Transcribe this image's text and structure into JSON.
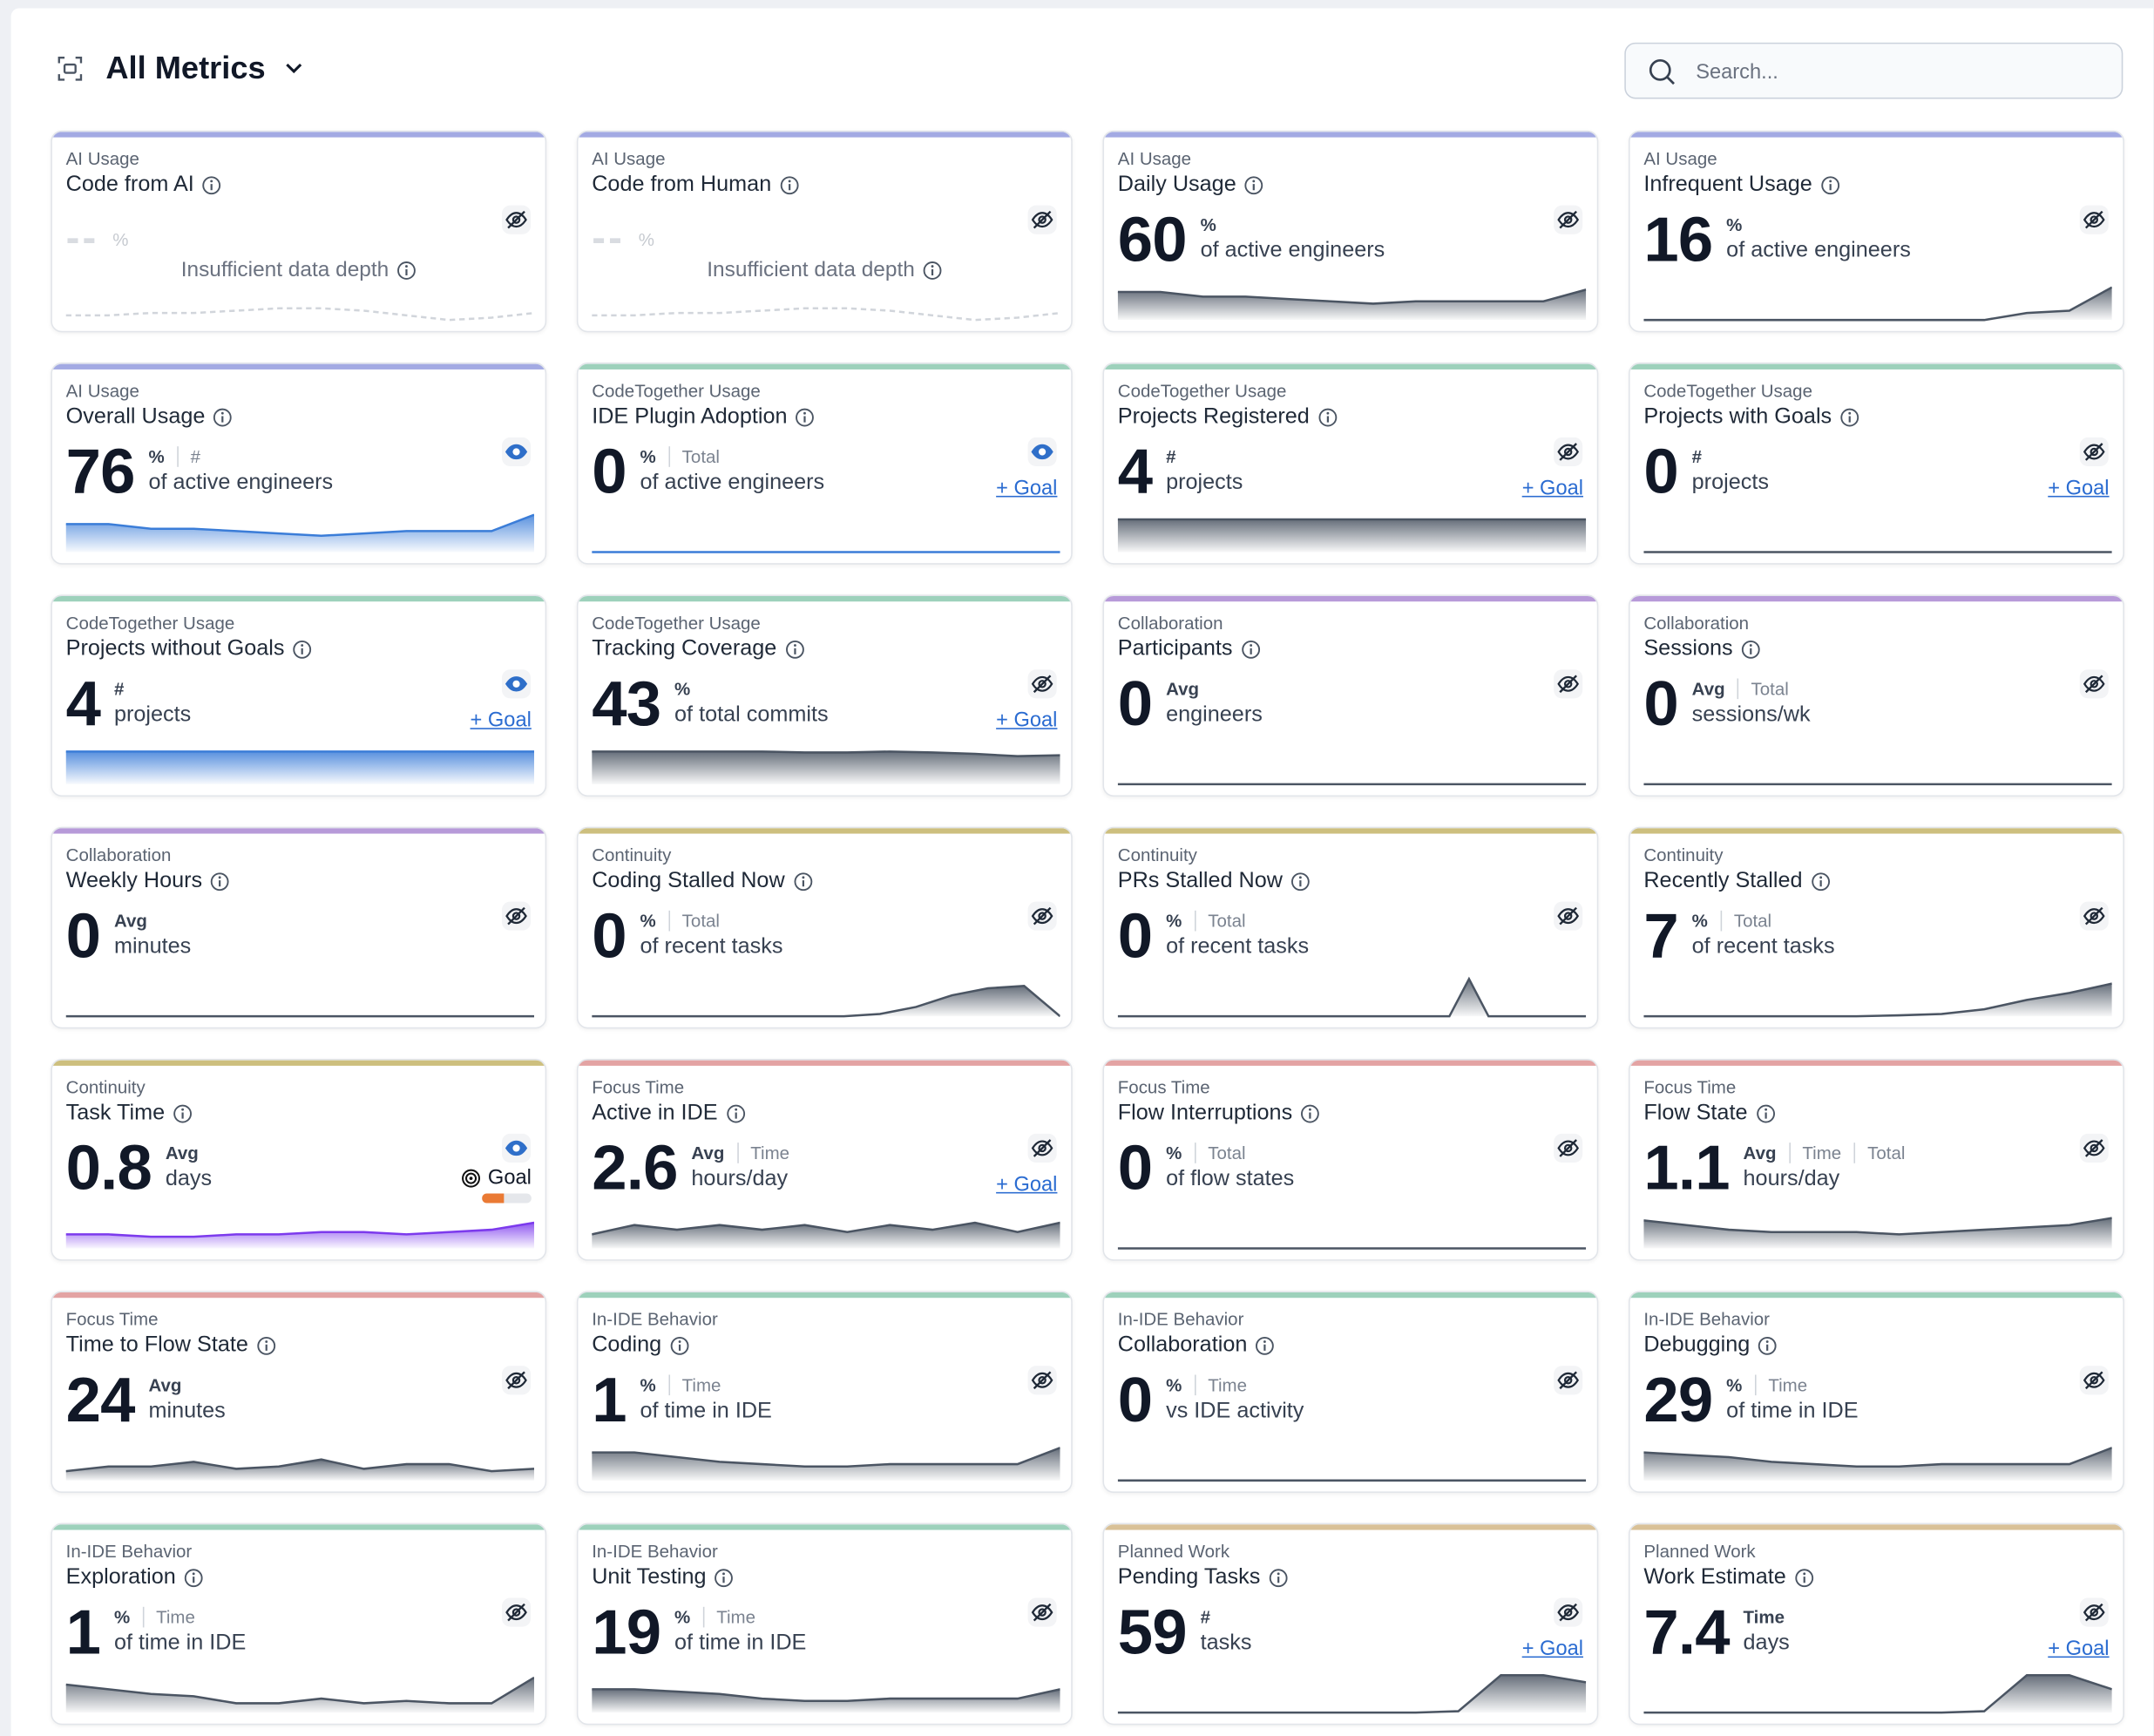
{
  "header": {
    "title": "All Metrics",
    "search_placeholder": "Search..."
  },
  "spark_ylim": [
    0,
    10
  ],
  "cards": [
    {
      "category": "AI Usage",
      "title": "Code from AI",
      "value": "--",
      "units": [
        "%"
      ],
      "note": "Insufficient data depth",
      "visible": false,
      "accent": "#a3aae3",
      "spark": [
        1,
        1,
        1.5,
        1.5,
        2,
        2.5,
        2.5,
        2,
        1,
        0,
        0.5,
        1.5
      ],
      "spark_style": "dashed",
      "spark_color": "#d1d5db"
    },
    {
      "category": "AI Usage",
      "title": "Code from Human",
      "value": "--",
      "units": [
        "%"
      ],
      "note": "Insufficient data depth",
      "visible": false,
      "accent": "#a3aae3",
      "spark": [
        1,
        1,
        1.5,
        1.5,
        2,
        2.5,
        2.5,
        2,
        1,
        0,
        0.5,
        1.5
      ],
      "spark_style": "dashed",
      "spark_color": "#d1d5db"
    },
    {
      "category": "AI Usage",
      "title": "Daily Usage",
      "value": 60,
      "units": [
        "%"
      ],
      "desc": "of active engineers",
      "visible": false,
      "accent": "#a3aae3",
      "spark": [
        6,
        6,
        5,
        5,
        4.5,
        4,
        3.5,
        4,
        4,
        4,
        4,
        6.5
      ],
      "spark_style": "area",
      "spark_color": "#4b5563"
    },
    {
      "category": "AI Usage",
      "title": "Infrequent Usage",
      "value": 16,
      "units": [
        "%"
      ],
      "desc": "of active engineers",
      "visible": false,
      "accent": "#a3aae3",
      "spark": [
        0,
        0,
        0,
        0,
        0,
        0,
        0,
        0,
        0,
        1.5,
        2,
        7
      ],
      "spark_style": "area",
      "spark_color": "#4b5563"
    },
    {
      "category": "AI Usage",
      "title": "Overall Usage",
      "value": 76,
      "units": [
        "%",
        "#"
      ],
      "desc": "of active engineers",
      "visible": true,
      "accent": "#a3aae3",
      "spark": [
        6,
        6,
        5,
        5,
        4.5,
        4,
        3.5,
        4,
        4.5,
        4.5,
        4.5,
        8
      ],
      "spark_style": "area",
      "spark_color": "#3b7dd8"
    },
    {
      "category": "CodeTogether Usage",
      "title": "IDE Plugin Adoption",
      "value": 0,
      "units": [
        "%",
        "Total"
      ],
      "desc": "of active engineers",
      "goal": "+ Goal",
      "visible": true,
      "accent": "#9dd1bb",
      "spark": [
        0,
        0,
        0,
        0,
        0,
        0,
        0,
        0,
        0,
        0,
        0,
        0
      ],
      "spark_style": "line",
      "spark_color": "#3b7dd8"
    },
    {
      "category": "CodeTogether Usage",
      "title": "Projects Registered",
      "value": 4,
      "units": [
        "#"
      ],
      "desc": "projects",
      "goal": "+ Goal",
      "visible": false,
      "accent": "#9dd1bb",
      "spark": [
        7,
        7,
        7,
        7,
        7,
        7,
        7,
        7,
        7,
        7,
        7,
        7
      ],
      "spark_style": "area",
      "spark_color": "#4b5563"
    },
    {
      "category": "CodeTogether Usage",
      "title": "Projects with Goals",
      "value": 0,
      "units": [
        "#"
      ],
      "desc": "projects",
      "goal": "+ Goal",
      "visible": false,
      "accent": "#9dd1bb",
      "spark": [
        0,
        0,
        0,
        0,
        0,
        0,
        0,
        0,
        0,
        0,
        0,
        0
      ],
      "spark_style": "area",
      "spark_color": "#4b5563"
    },
    {
      "category": "CodeTogether Usage",
      "title": "Projects without Goals",
      "value": 4,
      "units": [
        "#"
      ],
      "desc": "projects",
      "goal": "+ Goal",
      "visible": true,
      "accent": "#9dd1bb",
      "spark": [
        7,
        7,
        7,
        7,
        7,
        7,
        7,
        7,
        7,
        7,
        7,
        7
      ],
      "spark_style": "area",
      "spark_color": "#3b7dd8"
    },
    {
      "category": "CodeTogether Usage",
      "title": "Tracking Coverage",
      "value": 43,
      "units": [
        "%"
      ],
      "desc": "of total commits",
      "goal": "+ Goal",
      "visible": false,
      "accent": "#9dd1bb",
      "spark": [
        7,
        7,
        7,
        7,
        7,
        6.8,
        6.8,
        7,
        6.8,
        6.5,
        6,
        6.2
      ],
      "spark_style": "area",
      "spark_color": "#4b5563"
    },
    {
      "category": "Collaboration",
      "title": "Participants",
      "value": 0,
      "units": [
        "Avg"
      ],
      "desc": "engineers",
      "visible": false,
      "accent": "#b79ad9",
      "spark": [
        0,
        0,
        0,
        0,
        0,
        0,
        0,
        0,
        0,
        0,
        0,
        0
      ],
      "spark_style": "area",
      "spark_color": "#4b5563"
    },
    {
      "category": "Collaboration",
      "title": "Sessions",
      "value": 0,
      "units": [
        "Avg",
        "Total"
      ],
      "desc": "sessions/wk",
      "visible": false,
      "accent": "#b79ad9",
      "spark": [
        0,
        0,
        0,
        0,
        0,
        0,
        0,
        0,
        0,
        0,
        0,
        0
      ],
      "spark_style": "area",
      "spark_color": "#4b5563"
    },
    {
      "category": "Collaboration",
      "title": "Weekly Hours",
      "value": 0,
      "units": [
        "Avg"
      ],
      "desc": "minutes",
      "visible": false,
      "accent": "#b79ad9",
      "spark": [
        0,
        0,
        0,
        0,
        0,
        0,
        0,
        0,
        0,
        0,
        0,
        0
      ],
      "spark_style": "area",
      "spark_color": "#4b5563"
    },
    {
      "category": "Continuity",
      "title": "Coding Stalled Now",
      "value": 0,
      "units": [
        "%",
        "Total"
      ],
      "desc": "of recent tasks",
      "visible": false,
      "accent": "#cdbf7e",
      "spark": [
        0,
        0,
        0,
        0,
        0,
        0,
        0,
        0,
        0.5,
        2,
        4.5,
        6,
        6.5,
        0
      ],
      "spark_style": "area",
      "spark_color": "#4b5563"
    },
    {
      "category": "Continuity",
      "title": "PRs Stalled Now",
      "value": 0,
      "units": [
        "%",
        "Total"
      ],
      "desc": "of recent tasks",
      "visible": false,
      "accent": "#cdbf7e",
      "spark": [
        0,
        0,
        0,
        0,
        0,
        0,
        0,
        0,
        0,
        0,
        0,
        0,
        0,
        0,
        0,
        0,
        0,
        0,
        8,
        0,
        0,
        0,
        0,
        0,
        0
      ],
      "spark_style": "area",
      "spark_color": "#4b5563"
    },
    {
      "category": "Continuity",
      "title": "Recently Stalled",
      "value": 7,
      "units": [
        "%",
        "Total"
      ],
      "desc": "of recent tasks",
      "visible": false,
      "accent": "#cdbf7e",
      "spark": [
        0,
        0,
        0,
        0,
        0,
        0,
        0.2,
        0.5,
        1.5,
        3.5,
        5,
        7
      ],
      "spark_style": "area",
      "spark_color": "#4b5563"
    },
    {
      "category": "Continuity",
      "title": "Task Time",
      "value": 0.8,
      "units": [
        "Avg"
      ],
      "desc": "days",
      "visible": true,
      "goal_label": "Goal",
      "goal_progress": 45,
      "accent": "#cdbf7e",
      "spark": [
        3,
        3,
        2.5,
        2.5,
        3,
        3,
        3.5,
        3.5,
        3,
        3.5,
        4,
        5.5
      ],
      "spark_style": "area",
      "spark_color": "#7c3aed"
    },
    {
      "category": "Focus Time",
      "title": "Active in IDE",
      "value": 2.6,
      "units": [
        "Avg",
        "Time"
      ],
      "desc": "hours/day",
      "goal": "+ Goal",
      "visible": false,
      "accent": "#e3a3a3",
      "spark": [
        3,
        5,
        4,
        5,
        4,
        5,
        3.5,
        5,
        4,
        5.5,
        3.5,
        5.5
      ],
      "spark_style": "area",
      "spark_color": "#4b5563"
    },
    {
      "category": "Focus Time",
      "title": "Flow Interruptions",
      "value": 0,
      "units": [
        "%",
        "Total"
      ],
      "desc": "of flow states",
      "visible": false,
      "accent": "#e3a3a3",
      "spark": [
        0,
        0,
        0,
        0,
        0,
        0,
        0,
        0,
        0,
        0,
        0,
        0
      ],
      "spark_style": "area",
      "spark_color": "#4b5563"
    },
    {
      "category": "Focus Time",
      "title": "Flow State",
      "value": 1.1,
      "units": [
        "Avg",
        "Time",
        "Total"
      ],
      "desc": "hours/day",
      "visible": false,
      "accent": "#e3a3a3",
      "spark": [
        6,
        5,
        4,
        3.5,
        3.5,
        3.5,
        3,
        3.5,
        4,
        4.5,
        5,
        6.5
      ],
      "spark_style": "area",
      "spark_color": "#4b5563"
    },
    {
      "category": "Focus Time",
      "title": "Time to Flow State",
      "value": 24,
      "units": [
        "Avg"
      ],
      "desc": "minutes",
      "visible": false,
      "accent": "#e3a3a3",
      "spark": [
        2,
        3,
        3,
        4,
        2.5,
        3,
        4.5,
        2.5,
        3.5,
        3.5,
        2,
        2.5
      ],
      "spark_style": "area",
      "spark_color": "#4b5563"
    },
    {
      "category": "In-IDE Behavior",
      "title": "Coding",
      "value": 1,
      "units": [
        "%",
        "Time"
      ],
      "desc": "of time in IDE",
      "visible": false,
      "accent": "#9dd1bb",
      "spark": [
        6,
        6,
        5,
        4,
        3.5,
        3,
        3,
        3.5,
        3.5,
        3.5,
        3.5,
        7
      ],
      "spark_style": "area",
      "spark_color": "#4b5563"
    },
    {
      "category": "In-IDE Behavior",
      "title": "Collaboration",
      "value": 0,
      "units": [
        "%",
        "Time"
      ],
      "desc": "vs IDE activity",
      "visible": false,
      "accent": "#9dd1bb",
      "spark": [
        0,
        0,
        0,
        0,
        0,
        0,
        0,
        0,
        0,
        0,
        0,
        0
      ],
      "spark_style": "area",
      "spark_color": "#4b5563"
    },
    {
      "category": "In-IDE Behavior",
      "title": "Debugging",
      "value": 29,
      "units": [
        "%",
        "Time"
      ],
      "desc": "of time in IDE",
      "visible": false,
      "accent": "#9dd1bb",
      "spark": [
        6,
        5.5,
        5,
        4,
        3.5,
        3,
        3,
        3.5,
        3.5,
        3.5,
        3.5,
        7
      ],
      "spark_style": "area",
      "spark_color": "#4b5563"
    },
    {
      "category": "In-IDE Behavior",
      "title": "Exploration",
      "value": 1,
      "units": [
        "%",
        "Time"
      ],
      "desc": "of time in IDE",
      "visible": false,
      "accent": "#9dd1bb",
      "spark": [
        6,
        5,
        4,
        3.5,
        2,
        2,
        3,
        2,
        2.5,
        2,
        2,
        7.5
      ],
      "spark_style": "area",
      "spark_color": "#4b5563"
    },
    {
      "category": "In-IDE Behavior",
      "title": "Unit Testing",
      "value": 19,
      "units": [
        "%",
        "Time"
      ],
      "desc": "of time in IDE",
      "visible": false,
      "accent": "#9dd1bb",
      "spark": [
        5,
        5,
        4.5,
        4,
        3,
        2.5,
        2.5,
        3,
        3,
        3,
        3,
        5
      ],
      "spark_style": "area",
      "spark_color": "#4b5563"
    },
    {
      "category": "Planned Work",
      "title": "Pending Tasks",
      "value": 59,
      "units": [
        "#"
      ],
      "desc": "tasks",
      "goal": "+ Goal",
      "visible": false,
      "accent": "#d9c197",
      "spark": [
        0,
        0,
        0,
        0,
        0,
        0,
        0,
        0,
        0.3,
        8,
        8,
        6.5
      ],
      "spark_style": "area",
      "spark_color": "#4b5563"
    },
    {
      "category": "Planned Work",
      "title": "Work Estimate",
      "value": 7.4,
      "units": [
        "Time"
      ],
      "desc": "days",
      "goal": "+ Goal",
      "visible": false,
      "accent": "#d9c197",
      "spark": [
        0,
        0,
        0,
        0,
        0,
        0,
        0,
        0,
        0.3,
        8,
        8,
        5
      ],
      "spark_style": "area",
      "spark_color": "#4b5563"
    }
  ]
}
